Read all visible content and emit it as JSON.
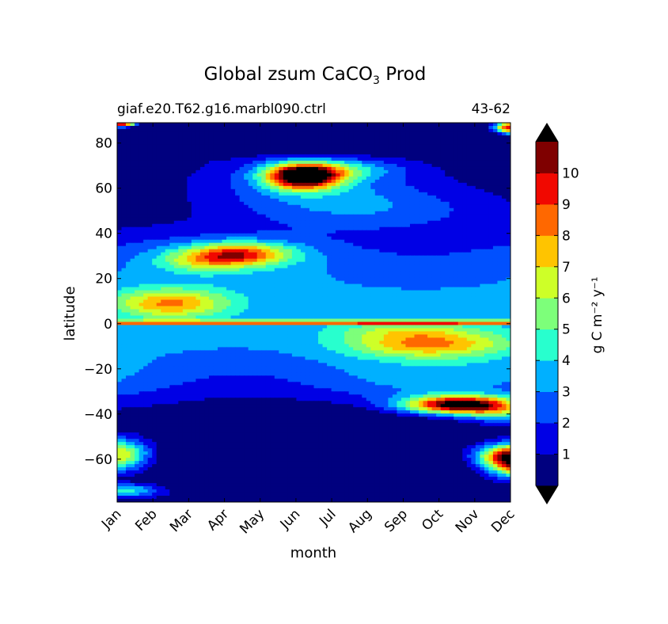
{
  "chart_data": {
    "type": "heatmap",
    "title_main": "Global zsum CaCO",
    "title_sub": "3",
    "title_tail": " Prod",
    "subtitle_left": "giaf.e20.T62.g16.marbl090.ctrl",
    "subtitle_right": "43-62",
    "xlabel": "month",
    "ylabel": "latitude",
    "x_categories": [
      "Jan",
      "Feb",
      "Mar",
      "Apr",
      "May",
      "Jun",
      "Jul",
      "Aug",
      "Sep",
      "Oct",
      "Nov",
      "Dec"
    ],
    "y_ticks": [
      80,
      60,
      40,
      20,
      0,
      -20,
      -40,
      -60
    ],
    "y_tick_labels": [
      "80",
      "60",
      "40",
      "20",
      "0",
      "−20",
      "−40",
      "−60"
    ],
    "ylim": [
      -79,
      89
    ],
    "colorbar": {
      "label": "g C m⁻² y⁻¹",
      "levels": [
        0,
        1,
        2,
        3,
        4,
        5,
        6,
        7,
        8,
        9,
        10,
        11
      ],
      "tick_labels": [
        "1",
        "2",
        "3",
        "4",
        "5",
        "6",
        "7",
        "8",
        "9",
        "10"
      ],
      "colors": [
        "#00007f",
        "#0000e5",
        "#0050ff",
        "#00b0ff",
        "#28ffce",
        "#7dff7a",
        "#ceff28",
        "#ffc400",
        "#ff6800",
        "#f10800",
        "#7f0000"
      ],
      "under_color": "#000000",
      "over_color": "#000000",
      "extend": "both"
    },
    "features": [
      {
        "description": "North Atlantic spring bloom max",
        "month": 5.2,
        "lat": 65,
        "peak": 12
      },
      {
        "description": "subtropical north band",
        "month": 3.5,
        "lat": 31,
        "peak": 9.5
      },
      {
        "description": "northern tropics",
        "month": 1.7,
        "lat": 9,
        "peak": 8.5
      },
      {
        "description": "equatorial max line",
        "month": 6,
        "lat": 0.5,
        "peak": 11
      },
      {
        "description": "southern tropics",
        "month": 8.7,
        "lat": -9,
        "peak": 9.5
      },
      {
        "description": "southern subtropics bloom",
        "month": 9.7,
        "lat": -36,
        "peak": 12
      },
      {
        "description": "southern ocean bloom",
        "month": 11.5,
        "lat": -62,
        "peak": 12
      }
    ]
  }
}
